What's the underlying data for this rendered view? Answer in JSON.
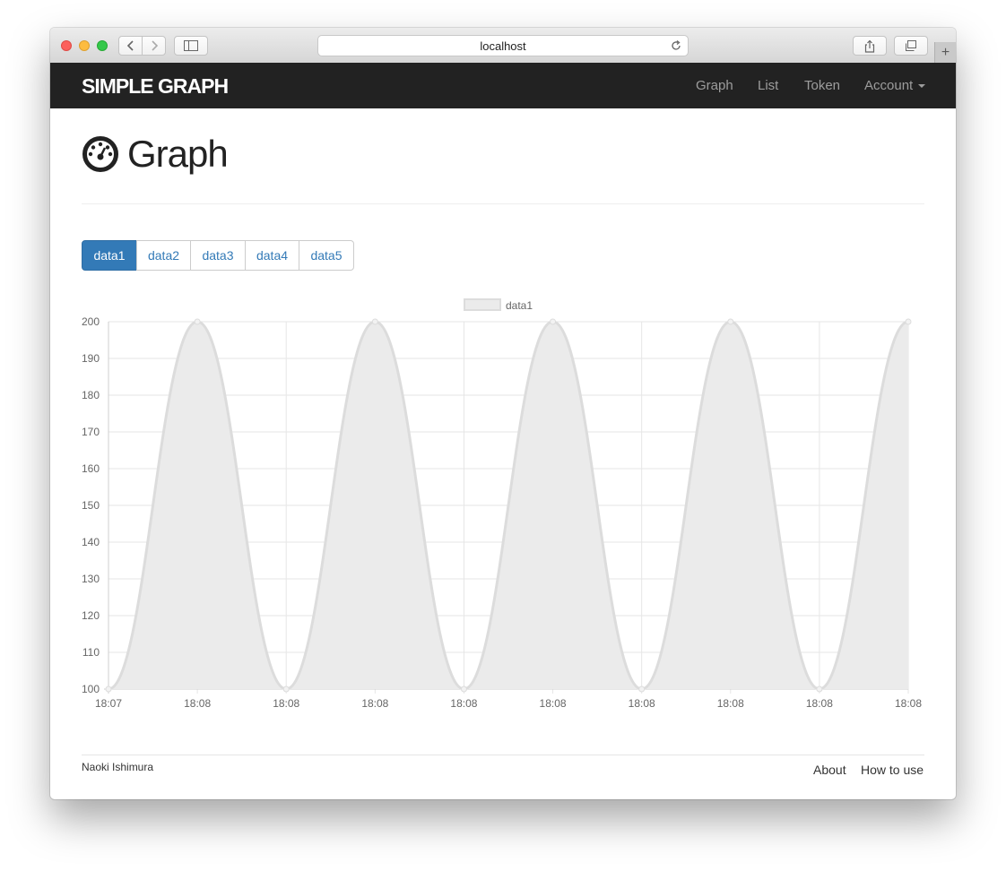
{
  "browser": {
    "url": "localhost"
  },
  "navbar": {
    "brand": "SIMPLE GRAPH",
    "items": [
      {
        "label": "Graph"
      },
      {
        "label": "List"
      },
      {
        "label": "Token"
      },
      {
        "label": "Account"
      }
    ]
  },
  "page": {
    "title": "Graph",
    "icon": "dashboard-gauge-icon",
    "tabs": [
      {
        "label": "data1",
        "active": true
      },
      {
        "label": "data2",
        "active": false
      },
      {
        "label": "data3",
        "active": false
      },
      {
        "label": "data4",
        "active": false
      },
      {
        "label": "data5",
        "active": false
      }
    ]
  },
  "chart_data": {
    "type": "area",
    "title": "",
    "xlabel": "",
    "ylabel": "",
    "legend": {
      "position": "top",
      "entries": [
        "data1"
      ]
    },
    "grid": true,
    "ylim": [
      100,
      200
    ],
    "yticks": [
      100,
      110,
      120,
      130,
      140,
      150,
      160,
      170,
      180,
      190,
      200
    ],
    "x": [
      "18:07",
      "18:08",
      "18:08",
      "18:08",
      "18:08",
      "18:08",
      "18:08",
      "18:08",
      "18:08",
      "18:08"
    ],
    "series": [
      {
        "name": "data1",
        "values": [
          100,
          200,
          100,
          200,
          100,
          200,
          100,
          200,
          100,
          200
        ],
        "line_color": "#dcdcdc",
        "fill_color": "#ebebeb"
      }
    ]
  },
  "footer": {
    "author": "Naoki Ishimura",
    "links": [
      {
        "label": "About"
      },
      {
        "label": "How to use"
      }
    ]
  }
}
